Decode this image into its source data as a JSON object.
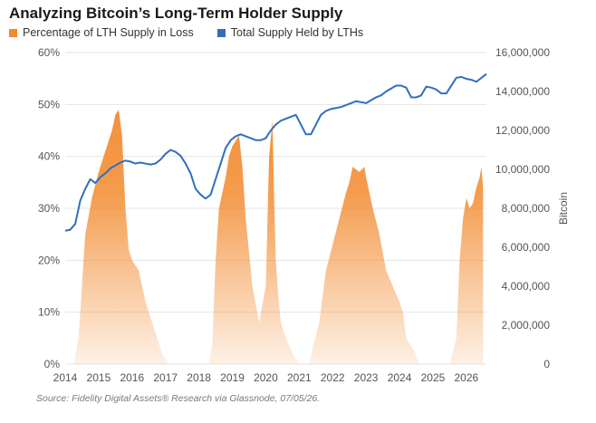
{
  "title": "Analyzing Bitcoin’s Long-Term Holder Supply",
  "legend": {
    "loss_label": "Percentage of LTH Supply in Loss",
    "supply_label": "Total Supply Held by LTHs"
  },
  "source": "Source: Fidelity Digital Assets® Research via Glassnode, 07/05/26.",
  "colors": {
    "loss": "#f28a2e",
    "supply": "#2f6fbd",
    "grid": "#e6e6e6"
  },
  "chart_data": {
    "type": "area",
    "title": "Analyzing Bitcoin’s Long-Term Holder Supply",
    "x_ticks": [
      "2014",
      "2015",
      "2016",
      "2017",
      "2018",
      "2019",
      "2020",
      "2021",
      "2022",
      "2023",
      "2024",
      "2025",
      "2026"
    ],
    "xlim": [
      2014.0,
      2026.6
    ],
    "y_left": {
      "ticks": [
        "0%",
        "10%",
        "20%",
        "30%",
        "40%",
        "50%",
        "60%"
      ],
      "lim": [
        0,
        60
      ],
      "unit": "%"
    },
    "y_right": {
      "label": "Bitcoin",
      "ticks": [
        "0",
        "2,000,000",
        "4,000,000",
        "6,000,000",
        "8,000,000",
        "10,000,000",
        "12,000,000",
        "14,000,000",
        "16,000,000"
      ],
      "lim": [
        0,
        16000000
      ]
    },
    "grid": "horizontal",
    "legend_position": "top-left",
    "series": [
      {
        "name": "Percentage of LTH Supply in Loss",
        "axis": "left",
        "type": "area",
        "x": [
          2014.25,
          2014.4,
          2014.6,
          2014.8,
          2015.0,
          2015.1,
          2015.2,
          2015.3,
          2015.4,
          2015.5,
          2015.6,
          2015.7,
          2015.8,
          2015.9,
          2016.0,
          2016.2,
          2016.4,
          2016.6,
          2016.9,
          2017.1,
          2018.3,
          2018.4,
          2018.5,
          2018.6,
          2018.8,
          2018.9,
          2019.0,
          2019.1,
          2019.2,
          2019.3,
          2019.4,
          2019.6,
          2019.8,
          2020.0,
          2020.1,
          2020.2,
          2020.25,
          2020.3,
          2020.35,
          2020.45,
          2020.6,
          2020.8,
          2021.0,
          2021.3,
          2021.4,
          2021.6,
          2021.8,
          2022.2,
          2022.4,
          2022.5,
          2022.6,
          2022.8,
          2022.95,
          2023.0,
          2023.1,
          2023.2,
          2023.4,
          2023.6,
          2023.8,
          2024.0,
          2024.1,
          2024.2,
          2024.4,
          2024.6,
          2025.5,
          2025.7,
          2025.8,
          2025.9,
          2026.0,
          2026.1,
          2026.2,
          2026.3,
          2026.4,
          2026.45,
          2026.5
        ],
        "values": [
          0,
          5,
          25,
          32,
          37,
          39,
          41,
          43,
          45,
          48,
          49,
          44,
          30,
          22,
          20,
          18,
          12,
          8,
          2,
          0,
          0,
          4,
          20,
          30,
          36,
          40,
          42,
          43,
          44,
          38,
          28,
          15,
          8,
          15,
          40,
          47,
          32,
          20,
          15,
          8,
          5,
          2,
          0,
          0,
          3,
          8,
          18,
          28,
          33,
          35,
          38,
          37,
          38,
          36,
          33,
          30,
          25,
          18,
          15,
          12,
          10,
          5,
          3,
          0,
          0,
          5,
          20,
          28,
          32,
          30,
          31,
          34,
          36,
          38,
          34
        ]
      },
      {
        "name": "Total Supply Held by LTHs",
        "axis": "right",
        "type": "line",
        "x": [
          2014.0,
          2014.15,
          2014.3,
          2014.45,
          2014.6,
          2014.75,
          2014.9,
          2015.05,
          2015.2,
          2015.35,
          2015.5,
          2015.65,
          2015.8,
          2015.95,
          2016.1,
          2016.25,
          2016.4,
          2016.55,
          2016.7,
          2016.85,
          2017.0,
          2017.15,
          2017.3,
          2017.45,
          2017.6,
          2017.75,
          2017.9,
          2018.05,
          2018.2,
          2018.35,
          2018.5,
          2018.65,
          2018.8,
          2018.95,
          2019.1,
          2019.25,
          2019.4,
          2019.55,
          2019.7,
          2019.85,
          2020.0,
          2020.15,
          2020.3,
          2020.45,
          2020.6,
          2020.75,
          2020.9,
          2021.05,
          2021.2,
          2021.35,
          2021.5,
          2021.65,
          2021.8,
          2021.95,
          2022.1,
          2022.25,
          2022.4,
          2022.55,
          2022.7,
          2022.85,
          2023.0,
          2023.15,
          2023.3,
          2023.45,
          2023.6,
          2023.75,
          2023.9,
          2024.05,
          2024.2,
          2024.35,
          2024.5,
          2024.65,
          2024.8,
          2024.95,
          2025.1,
          2025.25,
          2025.4,
          2025.55,
          2025.7,
          2025.85,
          2026.0,
          2026.15,
          2026.3,
          2026.45,
          2026.6
        ],
        "values": [
          6850000,
          6900000,
          7200000,
          8400000,
          9000000,
          9500000,
          9300000,
          9600000,
          9800000,
          10050000,
          10200000,
          10350000,
          10450000,
          10400000,
          10300000,
          10350000,
          10300000,
          10250000,
          10300000,
          10500000,
          10800000,
          11000000,
          10900000,
          10700000,
          10300000,
          9800000,
          9000000,
          8700000,
          8500000,
          8700000,
          9500000,
          10300000,
          11100000,
          11500000,
          11700000,
          11800000,
          11700000,
          11600000,
          11500000,
          11500000,
          11600000,
          12000000,
          12300000,
          12500000,
          12600000,
          12700000,
          12800000,
          12300000,
          11800000,
          11800000,
          12300000,
          12800000,
          13000000,
          13100000,
          13150000,
          13200000,
          13300000,
          13400000,
          13500000,
          13450000,
          13400000,
          13550000,
          13700000,
          13800000,
          14000000,
          14150000,
          14300000,
          14300000,
          14200000,
          13700000,
          13700000,
          13800000,
          14250000,
          14200000,
          14100000,
          13900000,
          13900000,
          14300000,
          14700000,
          14750000,
          14650000,
          14600000,
          14500000,
          14700000,
          14900000
        ]
      }
    ]
  }
}
